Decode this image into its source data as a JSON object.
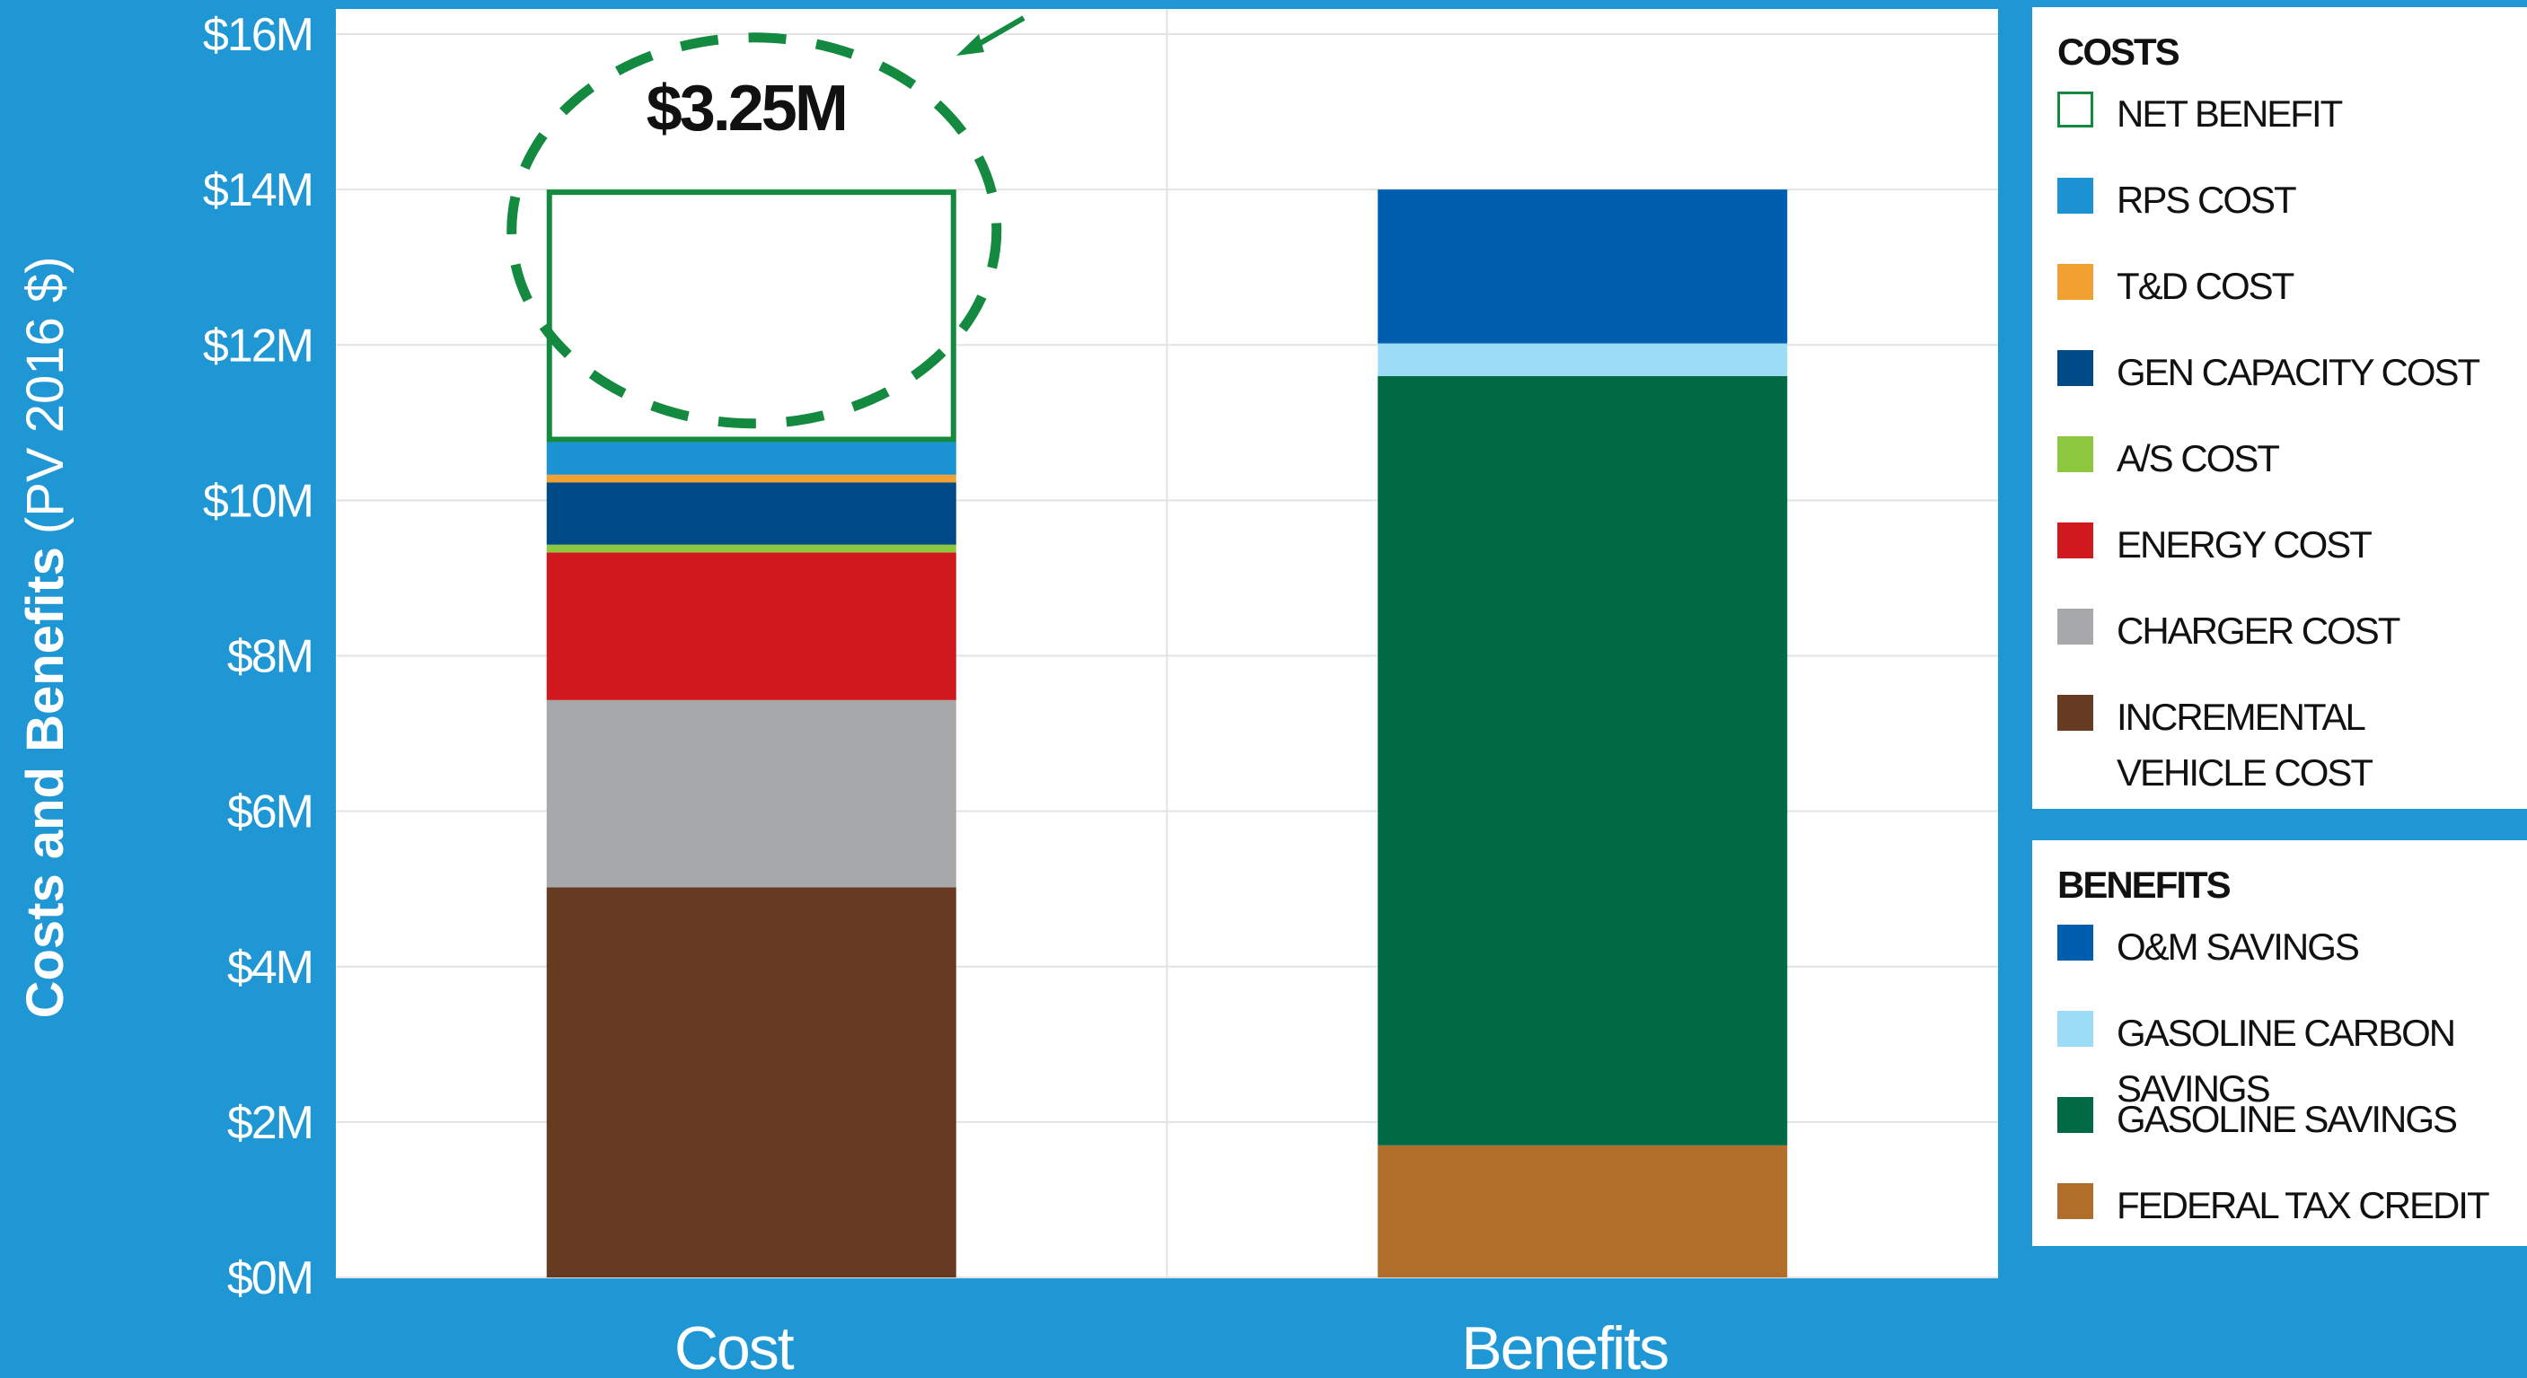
{
  "chart_data": {
    "type": "bar",
    "stacked": true,
    "categories": [
      "Cost",
      "Benefits"
    ],
    "ylabel": "Costs and Benefits",
    "ylabel_unit": "(PV 2016 $)",
    "ylim": [
      0,
      16
    ],
    "yticks": [
      "$0M",
      "$2M",
      "$4M",
      "$6M",
      "$8M",
      "$10M",
      "$12M",
      "$14M",
      "$16M"
    ],
    "grid": true,
    "series": [
      {
        "name": "INCREMENTAL VEHICLE COST",
        "group": "costs",
        "color": "#673a22",
        "values": [
          5.02,
          0
        ]
      },
      {
        "name": "CHARGER COST",
        "group": "costs",
        "color": "#a7a8aa",
        "values": [
          2.41,
          0
        ]
      },
      {
        "name": "ENERGY COST",
        "group": "costs",
        "color": "#d0191f",
        "values": [
          1.9,
          0
        ]
      },
      {
        "name": "A/S COST",
        "group": "costs",
        "color": "#8dc63f",
        "values": [
          0.1,
          0
        ]
      },
      {
        "name": "GEN CAPACITY COST",
        "group": "costs",
        "color": "#004b87",
        "values": [
          0.8,
          0
        ]
      },
      {
        "name": "T&D COST",
        "group": "costs",
        "color": "#f2a031",
        "values": [
          0.1,
          0
        ]
      },
      {
        "name": "RPS COST",
        "group": "costs",
        "color": "#1c94d3",
        "values": [
          0.42,
          0
        ]
      },
      {
        "name": "NET BENEFIT",
        "group": "costs",
        "color": "#138a3f",
        "outline": true,
        "values": [
          3.25,
          0
        ]
      },
      {
        "name": "FEDERAL TAX CREDIT",
        "group": "benefits",
        "color": "#b06e2a",
        "values": [
          0,
          1.7
        ]
      },
      {
        "name": "GASOLINE SAVINGS",
        "group": "benefits",
        "color": "#006a44",
        "values": [
          0,
          9.9
        ]
      },
      {
        "name": "GASOLINE CARBON SAVINGS",
        "group": "benefits",
        "color": "#9ddcf7",
        "values": [
          0,
          0.42
        ]
      },
      {
        "name": "O&M SAVINGS",
        "group": "benefits",
        "color": "#005eae",
        "values": [
          0,
          1.98
        ]
      }
    ],
    "annotations": [
      {
        "text": "$3.25M",
        "target": "NET BENEFIT"
      }
    ],
    "legend_placement": "right",
    "legend": {
      "costs_title": "COSTS",
      "benefits_title": "BENEFITS",
      "costs": [
        "NET BENEFIT",
        "RPS COST",
        "T&D COST",
        "GEN CAPACITY COST",
        "A/S COST",
        "ENERGY COST",
        "CHARGER COST",
        "INCREMENTAL VEHICLE COST"
      ],
      "benefits": [
        "O&M SAVINGS",
        "GASOLINE CARBON SAVINGS",
        "GASOLINE SAVINGS",
        "FEDERAL TAX CREDIT"
      ]
    },
    "colors": {
      "background": "#1f97d5",
      "plot": "#ffffff",
      "annotation": "#138a3f"
    }
  }
}
